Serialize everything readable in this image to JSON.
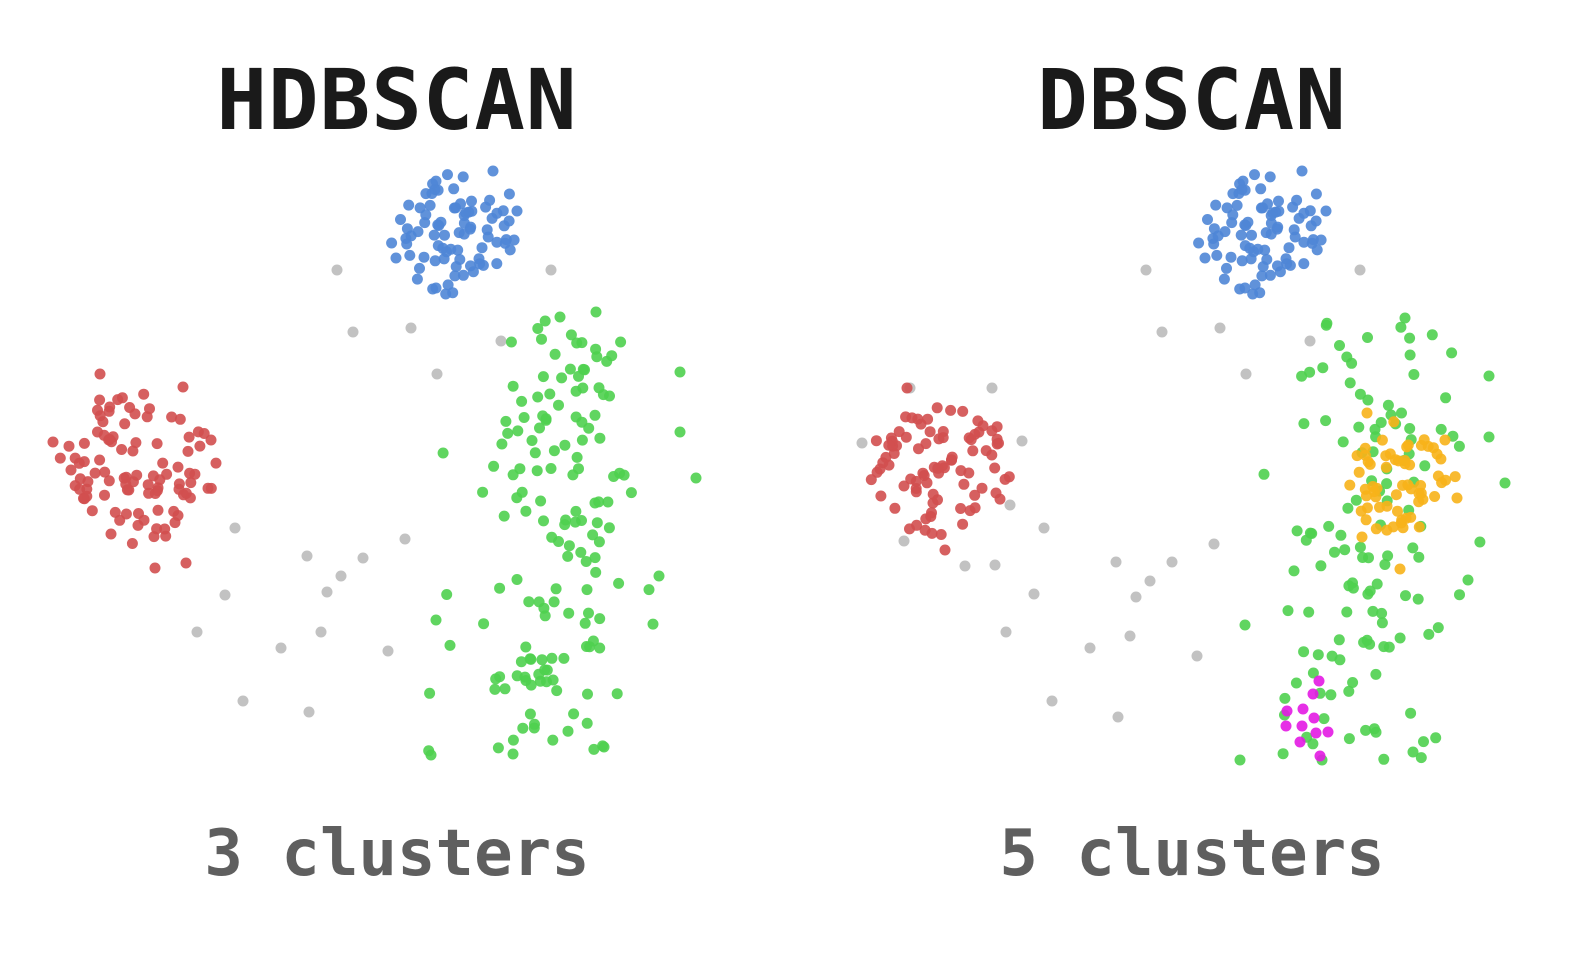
{
  "chart_data": [
    {
      "type": "scatter",
      "title": "HDBSCAN",
      "caption": "3 clusters",
      "xlim": [
        0,
        794
      ],
      "ylim": [
        0,
        972
      ],
      "colors": {
        "noise": "#bbbbbb",
        "blue": "#4f86d6",
        "red": "#d24f4f",
        "green": "#4fd04f"
      },
      "series": [
        {
          "color": "noise",
          "points": [
            [
              337,
              270
            ],
            [
              551,
              270
            ],
            [
              353,
              332
            ],
            [
              411,
              328
            ],
            [
              501,
              341
            ],
            [
              437,
              374
            ],
            [
              235,
              528
            ],
            [
              307,
              556
            ],
            [
              363,
              558
            ],
            [
              341,
              576
            ],
            [
              327,
              592
            ],
            [
              405,
              539
            ],
            [
              225,
              595
            ],
            [
              197,
              632
            ],
            [
              321,
              632
            ],
            [
              281,
              648
            ],
            [
              388,
              651
            ],
            [
              243,
              701
            ],
            [
              309,
              712
            ]
          ]
        },
        {
          "color": "blue",
          "cluster": "circle",
          "n": 80,
          "cx": 458,
          "cy": 232,
          "r": 60,
          "seed": 11,
          "points": [
            [
              493,
              171
            ],
            [
              517,
              211
            ],
            [
              436,
              288
            ],
            [
              396,
              258
            ]
          ]
        },
        {
          "color": "red",
          "cluster": "circle",
          "n": 95,
          "cx": 137,
          "cy": 468,
          "r": 75,
          "seed": 23,
          "points": [
            [
              100,
              374
            ],
            [
              183,
              387
            ],
            [
              53,
              442
            ],
            [
              211,
              440
            ],
            [
              155,
              568
            ],
            [
              186,
              563
            ],
            [
              71,
              470
            ]
          ]
        },
        {
          "color": "green",
          "cluster": "column",
          "n": 150,
          "cx": 560,
          "cy": 532,
          "r": 140,
          "yTop": 312,
          "yBot": 752,
          "seed": 37,
          "points": [
            [
              596,
              312
            ],
            [
              680,
              372
            ],
            [
              696,
              478
            ],
            [
              431,
              755
            ],
            [
              513,
              754
            ],
            [
              604,
              747
            ],
            [
              436,
              620
            ],
            [
              680,
              432
            ],
            [
              659,
              576
            ]
          ]
        }
      ]
    },
    {
      "type": "scatter",
      "title": "DBSCAN",
      "caption": "5 clusters",
      "xlim": [
        0,
        794
      ],
      "ylim": [
        0,
        972
      ],
      "colors": {
        "noise": "#bbbbbb",
        "blue": "#4f86d6",
        "red": "#d24f4f",
        "green": "#4fd04f",
        "orange": "#f7b319",
        "magenta": "#e31ae3"
      },
      "series": [
        {
          "color": "noise",
          "points": [
            [
              351,
              270
            ],
            [
              565,
              270
            ],
            [
              367,
              332
            ],
            [
              425,
              328
            ],
            [
              515,
              341
            ],
            [
              451,
              374
            ],
            [
              249,
              528
            ],
            [
              321,
              562
            ],
            [
              377,
              562
            ],
            [
              355,
              581
            ],
            [
              341,
              597
            ],
            [
              419,
              544
            ],
            [
              239,
              594
            ],
            [
              211,
              632
            ],
            [
              335,
              636
            ],
            [
              295,
              648
            ],
            [
              402,
              656
            ],
            [
              257,
              701
            ],
            [
              323,
              717
            ],
            [
              115,
              388
            ],
            [
              197,
              388
            ],
            [
              67,
              443
            ],
            [
              227,
              441
            ],
            [
              109,
              541
            ],
            [
              170,
              566
            ],
            [
              200,
              565
            ],
            [
              215,
              505
            ]
          ]
        },
        {
          "color": "blue",
          "cluster": "circle",
          "n": 80,
          "cx": 470,
          "cy": 232,
          "r": 60,
          "seed": 11,
          "points": [
            [
              507,
              171
            ],
            [
              531,
              211
            ],
            [
              450,
              288
            ],
            [
              410,
              258
            ]
          ]
        },
        {
          "color": "red",
          "cluster": "circle",
          "n": 85,
          "cx": 145,
          "cy": 465,
          "r": 68,
          "seed": 29,
          "points": [
            [
              112,
              388
            ],
            [
              85,
              469
            ],
            [
              150,
              550
            ]
          ]
        },
        {
          "color": "green",
          "cluster": "column",
          "n": 120,
          "cx": 580,
          "cy": 540,
          "r": 140,
          "yTop": 318,
          "yBot": 760,
          "seed": 41,
          "points": [
            [
              610,
              318
            ],
            [
              694,
              376
            ],
            [
              710,
              483
            ],
            [
              445,
              760
            ],
            [
              527,
              760
            ],
            [
              618,
              752
            ],
            [
              450,
              625
            ],
            [
              694,
              437
            ],
            [
              673,
              580
            ]
          ]
        },
        {
          "color": "orange",
          "cluster": "circle",
          "n": 60,
          "cx": 602,
          "cy": 478,
          "r": 55,
          "seed": 53,
          "points": [
            [
              572,
              413
            ],
            [
              650,
              440
            ],
            [
              662,
              498
            ],
            [
              567,
              537
            ],
            [
              605,
              569
            ]
          ]
        },
        {
          "color": "magenta",
          "points": [
            [
              524,
              681
            ],
            [
              518,
              694
            ],
            [
              492,
              711
            ],
            [
              508,
              709
            ],
            [
              519,
              718
            ],
            [
              491,
              726
            ],
            [
              507,
              726
            ],
            [
              521,
              733
            ],
            [
              533,
              732
            ],
            [
              505,
              742
            ],
            [
              525,
              756
            ]
          ]
        }
      ]
    }
  ]
}
